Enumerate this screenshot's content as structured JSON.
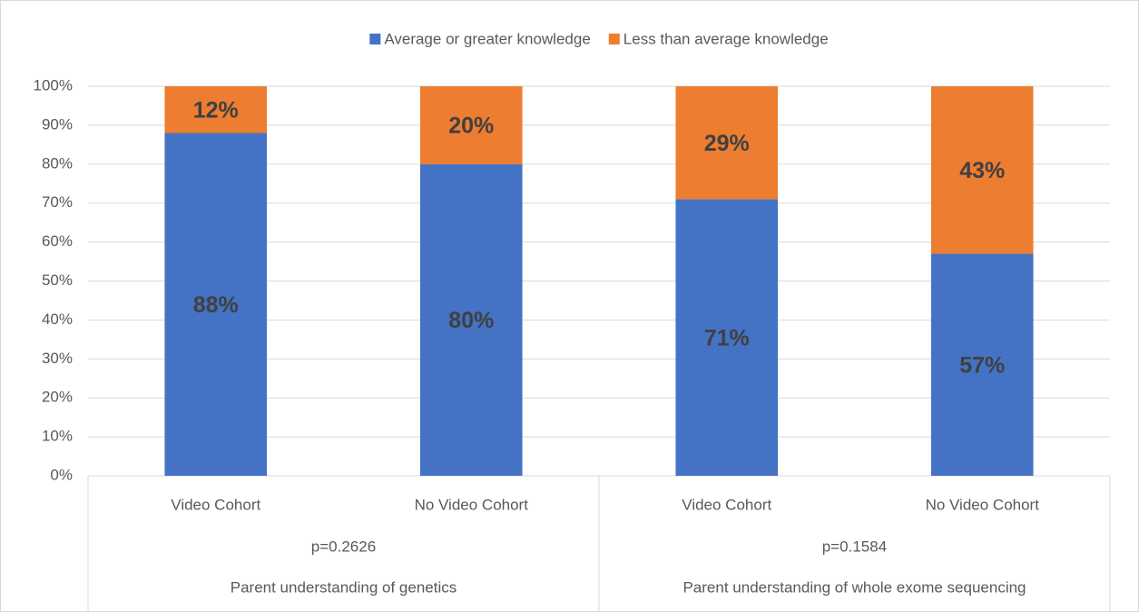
{
  "chart_data": {
    "type": "stacked_bar",
    "categories": [
      "Video Cohort",
      "No Video Cohort",
      "Video Cohort",
      "No Video Cohort"
    ],
    "groups": [
      {
        "note": "p=0.2626",
        "label": "Parent understanding of genetics"
      },
      {
        "note": "p=0.1584",
        "label": "Parent understanding of whole exome sequencing"
      }
    ],
    "series": [
      {
        "name": "Average or greater knowledge",
        "color": "#4472c4",
        "values": [
          88,
          80,
          71,
          57
        ],
        "value_labels": [
          "88%",
          "80%",
          "71%",
          "57%"
        ]
      },
      {
        "name": "Less than average knowledge",
        "color": "#ed7d31",
        "values": [
          12,
          20,
          29,
          43
        ],
        "value_labels": [
          "12%",
          "20%",
          "29%",
          "43%"
        ]
      }
    ],
    "ylim": [
      0,
      100
    ],
    "yticks": [
      {
        "value": 0,
        "label": "0%"
      },
      {
        "value": 10,
        "label": "10%"
      },
      {
        "value": 20,
        "label": "20%"
      },
      {
        "value": 30,
        "label": "30%"
      },
      {
        "value": 40,
        "label": "40%"
      },
      {
        "value": 50,
        "label": "50%"
      },
      {
        "value": 60,
        "label": "60%"
      },
      {
        "value": 70,
        "label": "70%"
      },
      {
        "value": 80,
        "label": "80%"
      },
      {
        "value": 90,
        "label": "90%"
      },
      {
        "value": 100,
        "label": "100%"
      }
    ],
    "grid": true,
    "legend": "top"
  }
}
